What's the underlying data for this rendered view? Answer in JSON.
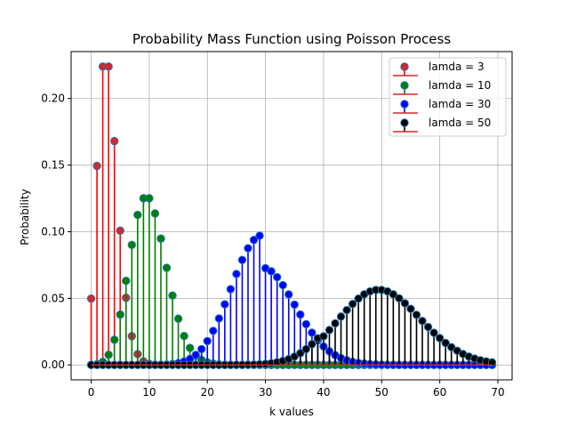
{
  "chart_data": {
    "type": "stem",
    "title": "Probability Mass Function using Poisson Process",
    "xlabel": "k values",
    "ylabel": "Probability",
    "xlim": [
      -3.45,
      72.45
    ],
    "ylim": [
      -0.0112,
      0.2352
    ],
    "xticks": [
      0,
      10,
      20,
      30,
      40,
      50,
      60,
      70
    ],
    "yticks": [
      0.0,
      0.05,
      0.1,
      0.15,
      0.2
    ],
    "ytick_labels": [
      "0.00",
      "0.05",
      "0.10",
      "0.15",
      "0.20"
    ],
    "grid": true,
    "legend_position": "top-right",
    "k": [
      0,
      1,
      2,
      3,
      4,
      5,
      6,
      7,
      8,
      9,
      10,
      11,
      12,
      13,
      14,
      15,
      16,
      17,
      18,
      19,
      20,
      21,
      22,
      23,
      24,
      25,
      26,
      27,
      28,
      29,
      30,
      31,
      32,
      33,
      34,
      35,
      36,
      37,
      38,
      39,
      40,
      41,
      42,
      43,
      44,
      45,
      46,
      47,
      48,
      49,
      50,
      51,
      52,
      53,
      54,
      55,
      56,
      57,
      58,
      59,
      60,
      61,
      62,
      63,
      64,
      65,
      66,
      67,
      68,
      69
    ],
    "series": [
      {
        "name": "lamda = 3",
        "lambda": 3,
        "stem_color": "#ff0000",
        "marker_face": "#d62728",
        "marker_edge": "#1f77b4",
        "values": [
          0.0498,
          0.1494,
          0.224,
          0.224,
          0.168,
          0.1008,
          0.0504,
          0.0216,
          0.0081,
          0.0027,
          0.0008,
          0.0002,
          0.0001,
          0,
          0,
          0,
          0,
          0,
          0,
          0,
          0,
          0,
          0,
          0,
          0,
          0,
          0,
          0,
          0,
          0,
          0,
          0,
          0,
          0,
          0,
          0,
          0,
          0,
          0,
          0,
          0,
          0,
          0,
          0,
          0,
          0,
          0,
          0,
          0,
          0,
          0,
          0,
          0,
          0,
          0,
          0,
          0,
          0,
          0,
          0,
          0,
          0,
          0,
          0,
          0,
          0,
          0,
          0,
          0,
          0
        ]
      },
      {
        "name": "lamda = 10",
        "lambda": 10,
        "stem_color": "#008000",
        "marker_face": "#008000",
        "marker_edge": "#1f77b4",
        "values": [
          0.0,
          0.0005,
          0.0023,
          0.0076,
          0.0189,
          0.0378,
          0.0631,
          0.0901,
          0.1126,
          0.1251,
          0.1251,
          0.1137,
          0.0948,
          0.0729,
          0.0521,
          0.0347,
          0.0217,
          0.0128,
          0.0071,
          0.0037,
          0.0019,
          0.0009,
          0.0004,
          0.0002,
          0.0001,
          0,
          0,
          0,
          0,
          0,
          0,
          0,
          0,
          0,
          0,
          0,
          0,
          0,
          0,
          0,
          0,
          0,
          0,
          0,
          0,
          0,
          0,
          0,
          0,
          0,
          0,
          0,
          0,
          0,
          0,
          0,
          0,
          0,
          0,
          0,
          0,
          0,
          0,
          0,
          0,
          0,
          0,
          0,
          0,
          0
        ]
      },
      {
        "name": "lamda = 30",
        "lambda": 30,
        "stem_color": "#0000ff",
        "marker_face": "#0000ff",
        "marker_edge": "#1f77b4",
        "values": [
          0,
          0,
          0,
          0,
          0,
          0,
          0,
          0,
          0,
          0,
          0.0,
          0.0001,
          0.0001,
          0.0003,
          0.0007,
          0.0014,
          0.0026,
          0.0045,
          0.0075,
          0.0119,
          0.0179,
          0.0256,
          0.0349,
          0.0455,
          0.0569,
          0.0683,
          0.0788,
          0.0876,
          0.0938,
          0.097,
          0.0726,
          0.0703,
          0.0659,
          0.0599,
          0.0529,
          0.0453,
          0.0378,
          0.0306,
          0.0242,
          0.0186,
          0.0139,
          0.0102,
          0.0073,
          0.0051,
          0.0035,
          0.0023,
          0.0015,
          0.001,
          0.0006,
          0.0004,
          0.0002,
          0.0001,
          0.0001,
          0,
          0,
          0,
          0,
          0,
          0,
          0,
          0,
          0,
          0,
          0,
          0,
          0,
          0,
          0,
          0,
          0
        ]
      },
      {
        "name": "lamda = 50",
        "lambda": 50,
        "stem_color": "#000000",
        "marker_face": "#000000",
        "marker_edge": "#1f77b4",
        "values": [
          0,
          0,
          0,
          0,
          0,
          0,
          0,
          0,
          0,
          0,
          0,
          0,
          0,
          0,
          0,
          0,
          0,
          0,
          0,
          0,
          0,
          0,
          0,
          0,
          0.0,
          0.0001,
          0.0001,
          0.0002,
          0.0003,
          0.0005,
          0.0008,
          0.0013,
          0.002,
          0.003,
          0.0044,
          0.0063,
          0.0088,
          0.0119,
          0.0156,
          0.02,
          0.0215,
          0.0262,
          0.0312,
          0.0363,
          0.0412,
          0.0458,
          0.0498,
          0.053,
          0.0552,
          0.0563,
          0.0563,
          0.0552,
          0.053,
          0.05,
          0.0463,
          0.0421,
          0.0376,
          0.033,
          0.0285,
          0.0241,
          0.0201,
          0.0165,
          0.0133,
          0.0106,
          0.0082,
          0.0063,
          0.0048,
          0.0035,
          0.0026,
          0.0019
        ]
      }
    ]
  }
}
